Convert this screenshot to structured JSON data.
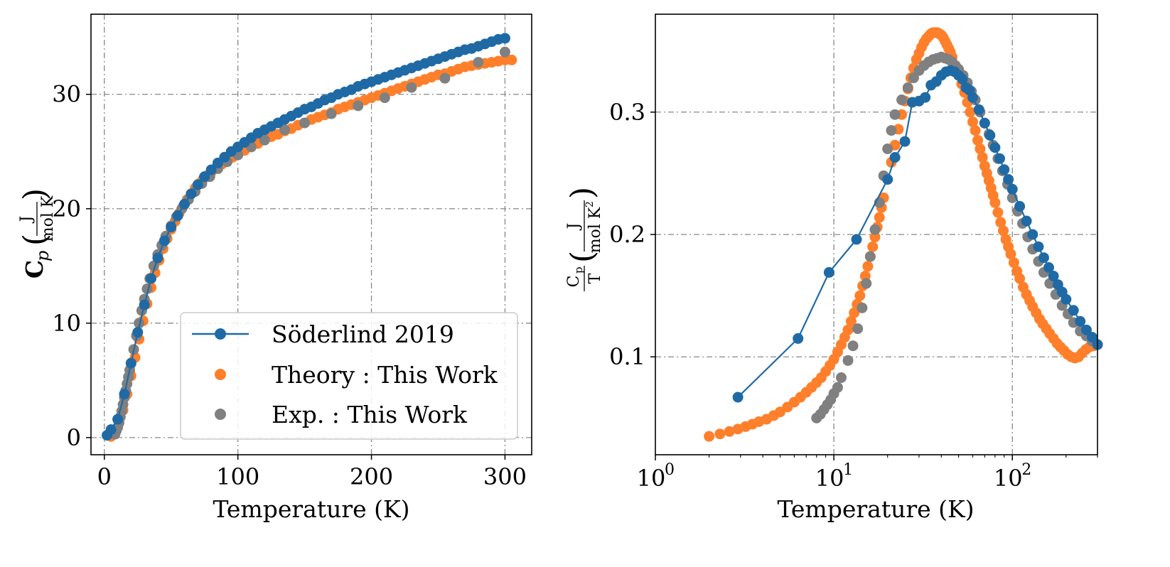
{
  "chart_data": [
    {
      "type": "line",
      "title": "",
      "xlabel": "Temperature (K)",
      "ylabel_main": "C",
      "ylabel_sub": "p",
      "ylabel_unit_num": "J",
      "ylabel_unit_den": "mol K",
      "xlim": [
        -10,
        320
      ],
      "ylim": [
        -1.5,
        37
      ],
      "xticks": [
        0,
        100,
        200,
        300
      ],
      "xtick_labels": [
        "0",
        "100",
        "200",
        "300"
      ],
      "yticks": [
        0,
        10,
        20,
        30
      ],
      "ytick_labels": [
        "0",
        "10",
        "20",
        "30"
      ],
      "grid": true,
      "legend_position": "lower-right",
      "legend": [
        "Söderlind 2019",
        "Theory :  This Work",
        "Exp. :  This Work"
      ],
      "colors": {
        "soderlind": "#1f6aa5",
        "theory": "#ff7f2a",
        "exp": "#808080"
      },
      "series": [
        {
          "name": "Söderlind 2019",
          "style": "line-marker",
          "x": [
            2,
            5,
            10,
            15,
            20,
            25,
            30,
            35,
            40,
            45,
            50,
            55,
            60,
            65,
            70,
            75,
            80,
            85,
            90,
            95,
            100,
            105,
            110,
            115,
            120,
            125,
            130,
            135,
            140,
            145,
            150,
            155,
            160,
            165,
            170,
            175,
            180,
            185,
            190,
            195,
            200,
            205,
            210,
            215,
            220,
            225,
            230,
            235,
            240,
            245,
            250,
            255,
            260,
            265,
            270,
            275,
            280,
            285,
            290,
            295,
            300
          ],
          "y": [
            0.2,
            0.7,
            1.6,
            3.8,
            6.5,
            9.2,
            11.6,
            13.9,
            15.7,
            17.2,
            18.4,
            19.4,
            20.4,
            21.3,
            22.1,
            22.8,
            23.4,
            24.0,
            24.5,
            25.0,
            25.4,
            25.8,
            26.2,
            26.6,
            26.9,
            27.2,
            27.5,
            27.8,
            28.1,
            28.4,
            28.7,
            28.9,
            29.2,
            29.5,
            29.7,
            30.0,
            30.2,
            30.4,
            30.7,
            30.9,
            31.1,
            31.3,
            31.5,
            31.7,
            31.9,
            32.1,
            32.3,
            32.5,
            32.7,
            32.9,
            33.1,
            33.3,
            33.5,
            33.7,
            33.9,
            34.0,
            34.2,
            34.4,
            34.6,
            34.8,
            34.9
          ]
        },
        {
          "name": "Theory :  This Work",
          "style": "marker",
          "x": [
            5,
            8,
            11,
            14,
            17,
            20,
            23,
            26,
            29,
            32,
            35,
            38,
            41,
            44,
            47,
            50,
            53,
            56,
            59,
            62,
            65,
            68,
            71,
            74,
            77,
            80,
            84,
            88,
            92,
            96,
            100,
            105,
            110,
            115,
            120,
            125,
            130,
            135,
            140,
            145,
            150,
            155,
            160,
            165,
            170,
            175,
            180,
            185,
            190,
            195,
            200,
            205,
            210,
            215,
            220,
            225,
            230,
            235,
            240,
            245,
            250,
            255,
            260,
            265,
            270,
            275,
            280,
            285,
            290,
            295,
            300,
            305
          ],
          "y": [
            0.1,
            0.5,
            1.3,
            2.4,
            3.8,
            5.4,
            7.0,
            8.6,
            10.2,
            11.7,
            13.1,
            14.4,
            15.5,
            16.5,
            17.4,
            18.2,
            18.9,
            19.6,
            20.2,
            20.8,
            21.3,
            21.8,
            22.2,
            22.6,
            22.9,
            23.2,
            23.6,
            23.9,
            24.2,
            24.5,
            24.8,
            25.1,
            25.4,
            25.7,
            26.0,
            26.3,
            26.5,
            26.8,
            27.0,
            27.3,
            27.5,
            27.8,
            28.0,
            28.2,
            28.4,
            28.7,
            28.9,
            29.1,
            29.3,
            29.5,
            29.7,
            29.9,
            30.1,
            30.3,
            30.5,
            30.7,
            30.9,
            31.1,
            31.3,
            31.5,
            31.7,
            31.8,
            32.0,
            32.2,
            32.4,
            32.5,
            32.6,
            32.7,
            32.8,
            32.9,
            33.0,
            33.0
          ]
        },
        {
          "name": "Exp. :  This Work",
          "style": "marker",
          "x": [
            8,
            9,
            10,
            11,
            12,
            13,
            14,
            15,
            16,
            17,
            18,
            19,
            20,
            22,
            24,
            26,
            28,
            30,
            32,
            34,
            37,
            40,
            43,
            46,
            50,
            54,
            58,
            63,
            68,
            73,
            79,
            85,
            92,
            100,
            110,
            120,
            135,
            150,
            170,
            190,
            210,
            230,
            255,
            280,
            300
          ],
          "y": [
            0.3,
            0.6,
            0.9,
            1.3,
            1.8,
            2.3,
            2.9,
            3.5,
            4.1,
            4.7,
            5.3,
            5.9,
            6.5,
            7.7,
            8.9,
            10.0,
            11.1,
            12.1,
            13.0,
            13.9,
            15.0,
            16.0,
            16.8,
            17.6,
            18.5,
            19.3,
            20.0,
            20.8,
            21.5,
            22.2,
            22.8,
            23.5,
            24.1,
            24.7,
            25.4,
            26.0,
            26.9,
            27.5,
            28.3,
            29.0,
            29.7,
            30.6,
            31.4,
            32.8,
            33.7
          ]
        }
      ]
    },
    {
      "type": "line",
      "title": "",
      "xscale": "log",
      "xlabel": "Temperature (K)",
      "ylabel_frac1_num": "C",
      "ylabel_frac1_num_sub": "p",
      "ylabel_frac1_den": "T",
      "ylabel_unit_num": "J",
      "ylabel_unit_den": "mol K",
      "ylabel_unit_den_sup": "2",
      "xlim": [
        1,
        300
      ],
      "ylim": [
        0.02,
        0.38
      ],
      "xticks": [
        1,
        10,
        100
      ],
      "xtick_base": "10",
      "xtick_exponents": [
        "0",
        "1",
        "2"
      ],
      "yticks": [
        0.1,
        0.2,
        0.3
      ],
      "ytick_labels": [
        "0.1",
        "0.2",
        "0.3"
      ],
      "grid": true,
      "colors": {
        "soderlind": "#1f6aa5",
        "theory": "#ff7f2a",
        "exp": "#808080"
      },
      "series": [
        {
          "name": "Söderlind 2019",
          "style": "line-marker",
          "x": [
            2.9,
            6.3,
            9.4,
            13.4,
            20,
            22,
            25,
            27.5,
            30,
            32.5,
            35,
            37.5,
            40,
            42.5,
            45,
            47.5,
            50,
            52.5,
            55,
            57.5,
            60,
            65,
            70,
            75,
            80,
            85,
            90,
            95,
            100,
            110,
            120,
            130,
            140,
            150,
            160,
            170,
            180,
            190,
            200,
            220,
            240,
            260,
            280,
            300
          ],
          "y": [
            0.067,
            0.115,
            0.169,
            0.196,
            0.245,
            0.263,
            0.276,
            0.308,
            0.309,
            0.312,
            0.322,
            0.325,
            0.33,
            0.333,
            0.334,
            0.333,
            0.33,
            0.327,
            0.32,
            0.318,
            0.312,
            0.302,
            0.291,
            0.281,
            0.271,
            0.262,
            0.253,
            0.245,
            0.237,
            0.223,
            0.211,
            0.2,
            0.19,
            0.181,
            0.173,
            0.166,
            0.159,
            0.153,
            0.147,
            0.138,
            0.129,
            0.122,
            0.116,
            0.11
          ]
        },
        {
          "name": "Theory :  This Work",
          "style": "marker",
          "x": [
            2,
            2.3,
            2.6,
            2.9,
            3.2,
            3.5,
            3.8,
            4.2,
            4.6,
            5,
            5.5,
            6,
            6.5,
            7,
            7.5,
            8,
            8.5,
            9,
            9.5,
            10,
            10.5,
            11,
            11.5,
            12,
            12.5,
            13,
            13.5,
            14,
            14.5,
            15,
            15.5,
            16,
            16.5,
            17,
            17.5,
            18,
            18.5,
            19,
            20,
            21,
            22,
            23,
            24,
            25,
            26,
            27,
            28,
            29,
            30,
            31,
            32,
            33,
            34,
            35,
            36,
            37,
            38,
            39,
            40,
            41,
            42,
            43,
            44,
            45,
            46,
            48,
            50,
            52,
            54,
            56,
            58,
            60,
            62,
            64,
            66,
            68,
            70,
            72,
            74,
            76,
            78,
            80,
            83,
            86,
            89,
            92,
            95,
            98,
            102,
            106,
            110,
            115,
            120,
            125,
            130,
            136,
            142,
            148,
            155,
            162,
            170,
            178,
            186,
            195,
            204,
            214,
            224,
            235,
            246,
            258,
            270,
            285,
            300
          ],
          "y": [
            0.035,
            0.037,
            0.039,
            0.041,
            0.043,
            0.045,
            0.047,
            0.049,
            0.052,
            0.055,
            0.059,
            0.063,
            0.067,
            0.071,
            0.075,
            0.079,
            0.083,
            0.088,
            0.093,
            0.098,
            0.104,
            0.11,
            0.116,
            0.122,
            0.129,
            0.136,
            0.143,
            0.15,
            0.158,
            0.166,
            0.174,
            0.182,
            0.19,
            0.198,
            0.206,
            0.214,
            0.222,
            0.23,
            0.245,
            0.259,
            0.273,
            0.286,
            0.298,
            0.309,
            0.319,
            0.328,
            0.336,
            0.343,
            0.348,
            0.353,
            0.357,
            0.36,
            0.362,
            0.364,
            0.365,
            0.365,
            0.365,
            0.364,
            0.363,
            0.361,
            0.358,
            0.355,
            0.352,
            0.349,
            0.345,
            0.338,
            0.331,
            0.323,
            0.316,
            0.308,
            0.3,
            0.292,
            0.285,
            0.277,
            0.27,
            0.263,
            0.256,
            0.25,
            0.244,
            0.238,
            0.232,
            0.226,
            0.218,
            0.21,
            0.203,
            0.196,
            0.19,
            0.184,
            0.177,
            0.17,
            0.164,
            0.157,
            0.151,
            0.146,
            0.141,
            0.136,
            0.131,
            0.127,
            0.123,
            0.119,
            0.115,
            0.111,
            0.108,
            0.105,
            0.102,
            0.1,
            0.099,
            0.1,
            0.103,
            0.106,
            0.108,
            0.109,
            0.11
          ]
        },
        {
          "name": "Exp. :  This Work",
          "style": "marker",
          "x": [
            8,
            8.4,
            8.8,
            9.2,
            9.6,
            10,
            10.5,
            11,
            12,
            12.8,
            13.6,
            14.4,
            15.2,
            16,
            17,
            18,
            19,
            20,
            21,
            22,
            24,
            26,
            28,
            30,
            32,
            34,
            36,
            38,
            40,
            42,
            44,
            46,
            48,
            50,
            53,
            56,
            59,
            62,
            66,
            70,
            74,
            78,
            83,
            88,
            94,
            100,
            107,
            114,
            122,
            130,
            140,
            150,
            162,
            175,
            190,
            205,
            220,
            240,
            260,
            280,
            300
          ],
          "y": [
            0.05,
            0.053,
            0.057,
            0.061,
            0.065,
            0.07,
            0.075,
            0.083,
            0.097,
            0.109,
            0.123,
            0.14,
            0.16,
            0.182,
            0.204,
            0.226,
            0.248,
            0.27,
            0.285,
            0.298,
            0.31,
            0.32,
            0.328,
            0.334,
            0.338,
            0.341,
            0.343,
            0.344,
            0.345,
            0.344,
            0.343,
            0.341,
            0.338,
            0.335,
            0.33,
            0.324,
            0.317,
            0.31,
            0.3,
            0.291,
            0.282,
            0.273,
            0.262,
            0.252,
            0.241,
            0.23,
            0.219,
            0.209,
            0.198,
            0.188,
            0.178,
            0.169,
            0.16,
            0.151,
            0.142,
            0.135,
            0.128,
            0.121,
            0.117,
            0.113,
            0.11
          ]
        }
      ]
    }
  ]
}
